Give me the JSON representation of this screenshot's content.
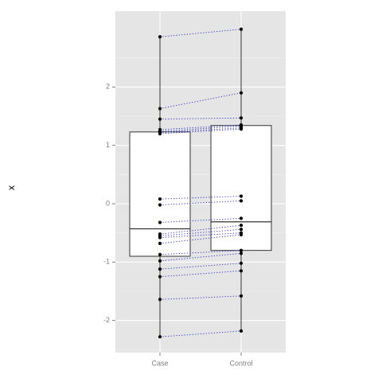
{
  "chart_data": {
    "type": "box",
    "ylabel": "x",
    "xlabel": "",
    "ylim": [
      -2.55,
      3.3
    ],
    "y_ticks": [
      -2,
      -1,
      0,
      1,
      2
    ],
    "y_tick_labels": [
      "-2",
      "-1",
      "0",
      "1",
      "2"
    ],
    "categories": [
      "Case",
      "Control"
    ],
    "grid": true,
    "boxes": [
      {
        "category": "Case",
        "min": -2.28,
        "q1": -0.9,
        "median": -0.43,
        "q3": 1.23,
        "max": 2.86
      },
      {
        "category": "Control",
        "min": -2.18,
        "q1": -0.8,
        "median": -0.31,
        "q3": 1.34,
        "max": 2.99
      }
    ],
    "pairs": [
      {
        "case": 2.86,
        "control": 2.99
      },
      {
        "case": 1.63,
        "control": 1.9
      },
      {
        "case": 1.45,
        "control": 1.47
      },
      {
        "case": 1.27,
        "control": 1.35
      },
      {
        "case": 1.24,
        "control": 1.33
      },
      {
        "case": 1.22,
        "control": 1.3
      },
      {
        "case": 1.2,
        "control": 1.28
      },
      {
        "case": 0.08,
        "control": 0.13
      },
      {
        "case": -0.02,
        "control": 0.05
      },
      {
        "case": -0.32,
        "control": -0.25
      },
      {
        "case": -0.52,
        "control": -0.37
      },
      {
        "case": -0.55,
        "control": -0.44
      },
      {
        "case": -0.58,
        "control": -0.5
      },
      {
        "case": -0.68,
        "control": -0.53
      },
      {
        "case": -0.87,
        "control": -0.8
      },
      {
        "case": -0.98,
        "control": -0.85
      },
      {
        "case": -1.12,
        "control": -1.02
      },
      {
        "case": -1.25,
        "control": -1.15
      },
      {
        "case": -1.64,
        "control": -1.58
      },
      {
        "case": -2.28,
        "control": -2.18
      }
    ],
    "colors": {
      "panel": "#e5e5e5",
      "grid_major": "#ffffff",
      "grid_minor": "#f2f2f2",
      "box_fill": "#ffffff",
      "box_stroke": "#333333",
      "point": "#000000",
      "pair_line": "#2222cc",
      "tick_text": "#7f7f7f"
    }
  }
}
